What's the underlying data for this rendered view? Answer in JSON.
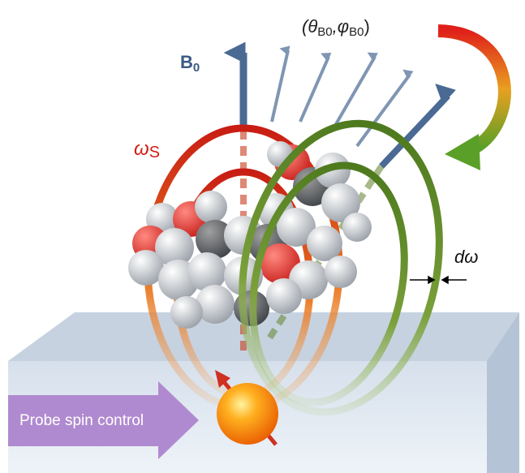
{
  "labels": {
    "field": [
      "B",
      "0"
    ],
    "angles": [
      "(θ",
      "B0",
      ",φ",
      "B0",
      ")"
    ],
    "omega": [
      "ω",
      "S"
    ],
    "linewidth": "dω",
    "control": "Probe spin control"
  }
}
